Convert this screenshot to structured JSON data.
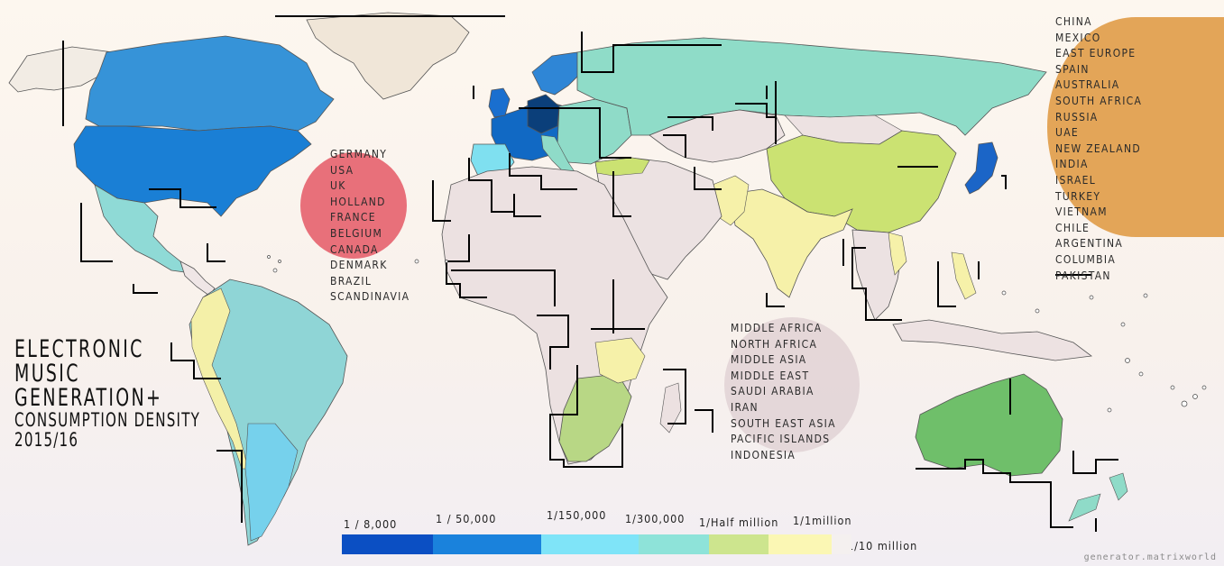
{
  "title": {
    "line1": "ELECTRONIC",
    "line2": "MUSIC",
    "line3": "GENERATION+",
    "line4": "CONSUMPTION DENSITY",
    "line5": "2015/16"
  },
  "groups": {
    "tier_high": {
      "color": "#e8707a",
      "items": [
        "GERMANY",
        "USA",
        "UK",
        "HOLLAND",
        "FRANCE",
        "BELGIUM",
        "CANADA",
        "DENMARK",
        "BRAZIL",
        "SCANDINAVIA"
      ]
    },
    "tier_mid": {
      "color": "#e3a558",
      "items": [
        "CHINA",
        "MEXICO",
        "EAST EUROPE",
        "SPAIN",
        "AUSTRALIA",
        "SOUTH AFRICA",
        "RUSSIA",
        "UAE",
        "NEW ZEALAND",
        "INDIA",
        "ISRAEL",
        "TURKEY",
        "VIETNAM",
        "CHILE",
        "ARGENTINA",
        "COLUMBIA",
        "PAKISTAN"
      ]
    },
    "tier_low": {
      "color": "#e2d4d6",
      "items": [
        "MIDDLE AFRICA",
        "NORTH AFRICA",
        "MIDDLE ASIA",
        "MIDDLE EAST",
        "SAUDI ARABIA",
        "IRAN",
        "SOUTH EAST ASIA",
        "PACIFIC ISLANDS",
        "INDONESIA"
      ]
    }
  },
  "legend": [
    {
      "label": "1 / 8,000",
      "color": "#0b4fc3"
    },
    {
      "label": "1 / 50,000",
      "color": "#1a82dc"
    },
    {
      "label": "1/150,000",
      "color": "#7fe4f8"
    },
    {
      "label": "1/300,000",
      "color": "#8ee3d9"
    },
    {
      "label": "1/Half million",
      "color": "#cde58e"
    },
    {
      "label": "1/1million",
      "color": "#fbf7b4"
    },
    {
      "label": "1/10 million",
      "color": "#f4f0ef"
    }
  ],
  "map_colors": {
    "north_america": "#1a7fd5",
    "canada": "#3693d8",
    "mexico": "#8fdad6",
    "south_america": "#8fd5d6",
    "south_america_secondary": "#c8e3a4",
    "chile_argentina": "#76d1ec",
    "western_europe": "#1169c4",
    "germany": "#0b3f7a",
    "east_europe": "#8fdbc8",
    "russia": "#8fdcc8",
    "china": "#cbe272",
    "india": "#f6f1a9",
    "australia": "#6fbf6a",
    "africa": "#ece1e1",
    "southern_africa": "#b8d785",
    "japan": "#1b65c7",
    "greenland": "#f0e6d8"
  },
  "credit": "generator.matrixworld"
}
